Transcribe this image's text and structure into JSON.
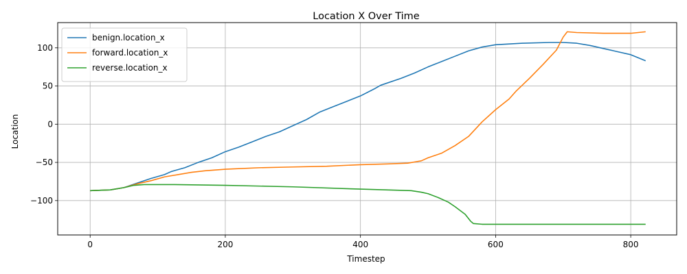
{
  "chart_data": {
    "type": "line",
    "title": "Location X Over Time",
    "xlabel": "Timestep",
    "ylabel": "Location",
    "xlim": [
      -48,
      868
    ],
    "ylim": [
      -145,
      133
    ],
    "xticks": [
      0,
      200,
      400,
      600,
      800
    ],
    "yticks": [
      -100,
      -50,
      0,
      50,
      100
    ],
    "grid": true,
    "legend_position": "upper-left",
    "series": [
      {
        "name": "benign.location_x",
        "color": "#1f77b4",
        "points": [
          [
            0,
            -87
          ],
          [
            30,
            -86
          ],
          [
            50,
            -83
          ],
          [
            70,
            -77
          ],
          [
            90,
            -71
          ],
          [
            110,
            -66
          ],
          [
            120,
            -62
          ],
          [
            140,
            -57
          ],
          [
            160,
            -50
          ],
          [
            180,
            -44
          ],
          [
            200,
            -36
          ],
          [
            220,
            -30
          ],
          [
            240,
            -23
          ],
          [
            260,
            -16
          ],
          [
            280,
            -10
          ],
          [
            300,
            -2
          ],
          [
            320,
            6
          ],
          [
            340,
            16
          ],
          [
            360,
            23
          ],
          [
            380,
            30
          ],
          [
            400,
            37
          ],
          [
            420,
            46
          ],
          [
            430,
            51
          ],
          [
            460,
            60
          ],
          [
            480,
            67
          ],
          [
            500,
            75
          ],
          [
            520,
            82
          ],
          [
            540,
            89
          ],
          [
            560,
            96
          ],
          [
            580,
            101
          ],
          [
            600,
            104
          ],
          [
            640,
            106
          ],
          [
            680,
            107
          ],
          [
            700,
            107
          ],
          [
            720,
            106
          ],
          [
            740,
            103
          ],
          [
            760,
            99
          ],
          [
            780,
            95
          ],
          [
            800,
            91
          ],
          [
            822,
            83
          ]
        ]
      },
      {
        "name": "forward.location_x",
        "color": "#ff7f0e",
        "points": [
          [
            0,
            -87
          ],
          [
            30,
            -86
          ],
          [
            50,
            -83
          ],
          [
            70,
            -78
          ],
          [
            90,
            -74
          ],
          [
            110,
            -69
          ],
          [
            130,
            -66
          ],
          [
            150,
            -63
          ],
          [
            170,
            -61
          ],
          [
            200,
            -59
          ],
          [
            250,
            -57
          ],
          [
            300,
            -56
          ],
          [
            350,
            -55
          ],
          [
            400,
            -53
          ],
          [
            440,
            -52
          ],
          [
            470,
            -51
          ],
          [
            490,
            -48
          ],
          [
            500,
            -44
          ],
          [
            520,
            -38
          ],
          [
            540,
            -28
          ],
          [
            560,
            -16
          ],
          [
            580,
            3
          ],
          [
            600,
            19
          ],
          [
            620,
            33
          ],
          [
            630,
            43
          ],
          [
            650,
            60
          ],
          [
            670,
            78
          ],
          [
            690,
            97
          ],
          [
            700,
            114
          ],
          [
            706,
            121
          ],
          [
            720,
            120
          ],
          [
            760,
            119
          ],
          [
            800,
            119
          ],
          [
            822,
            121
          ]
        ]
      },
      {
        "name": "reverse.location_x",
        "color": "#2ca02c",
        "points": [
          [
            0,
            -87
          ],
          [
            30,
            -86
          ],
          [
            50,
            -83
          ],
          [
            65,
            -80
          ],
          [
            80,
            -79
          ],
          [
            120,
            -79
          ],
          [
            200,
            -80
          ],
          [
            300,
            -82
          ],
          [
            400,
            -85
          ],
          [
            475,
            -87
          ],
          [
            490,
            -89
          ],
          [
            500,
            -91
          ],
          [
            515,
            -96
          ],
          [
            530,
            -102
          ],
          [
            540,
            -108
          ],
          [
            555,
            -118
          ],
          [
            563,
            -127
          ],
          [
            567,
            -130
          ],
          [
            580,
            -131
          ],
          [
            650,
            -131
          ],
          [
            700,
            -131
          ],
          [
            822,
            -131
          ]
        ]
      }
    ]
  }
}
